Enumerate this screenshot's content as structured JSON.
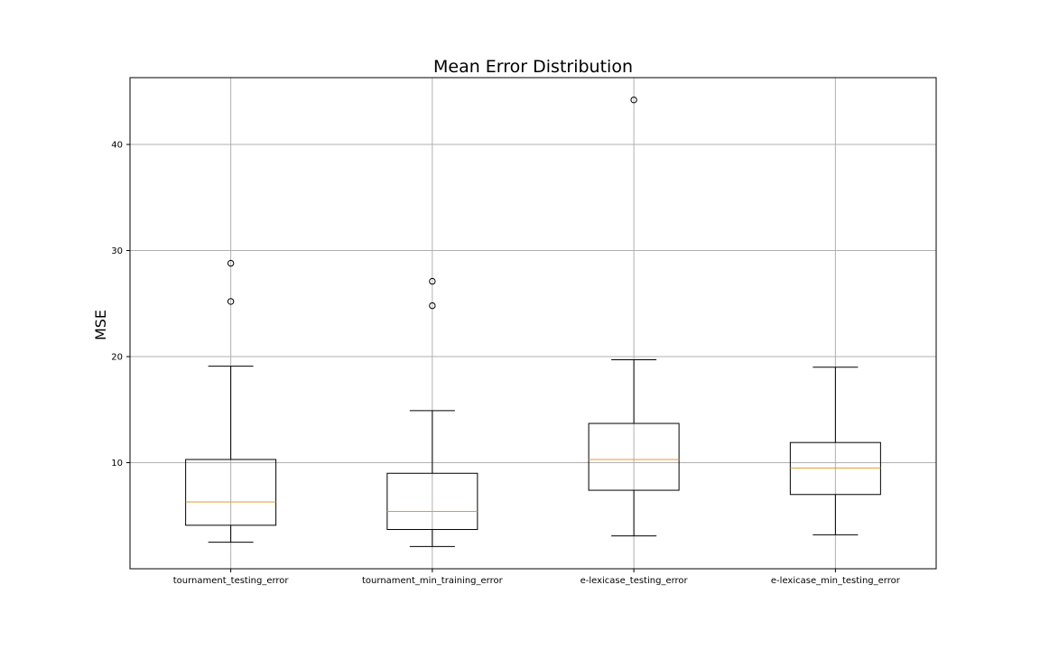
{
  "chart_data": {
    "type": "box",
    "title": "Mean Error Distribution",
    "xlabel": "",
    "ylabel": "MSE",
    "ylim": [
      0,
      46.3
    ],
    "yticks": [
      10,
      20,
      30,
      40
    ],
    "grid": true,
    "colors": {
      "median": "#e69a2a",
      "box": "#000000",
      "grid": "#b0b0b0"
    },
    "categories": [
      "tournament_testing_error",
      "tournament_min_training_error",
      "e-lexicase_testing_error",
      "e-lexicase_min_testing_error"
    ],
    "boxes": [
      {
        "whisker_low": 2.5,
        "q1": 4.1,
        "median": 6.3,
        "q3": 10.3,
        "whisker_high": 19.1,
        "outliers": [
          25.2,
          28.8
        ]
      },
      {
        "whisker_low": 2.1,
        "q1": 3.7,
        "median": 5.4,
        "q3": 9.0,
        "whisker_high": 14.9,
        "outliers": [
          24.8,
          27.1
        ]
      },
      {
        "whisker_low": 3.1,
        "q1": 7.4,
        "median": 10.3,
        "q3": 13.7,
        "whisker_high": 19.7,
        "outliers": [
          44.2
        ]
      },
      {
        "whisker_low": 3.2,
        "q1": 7.0,
        "median": 9.5,
        "q3": 11.9,
        "whisker_high": 19.0,
        "outliers": []
      }
    ]
  }
}
